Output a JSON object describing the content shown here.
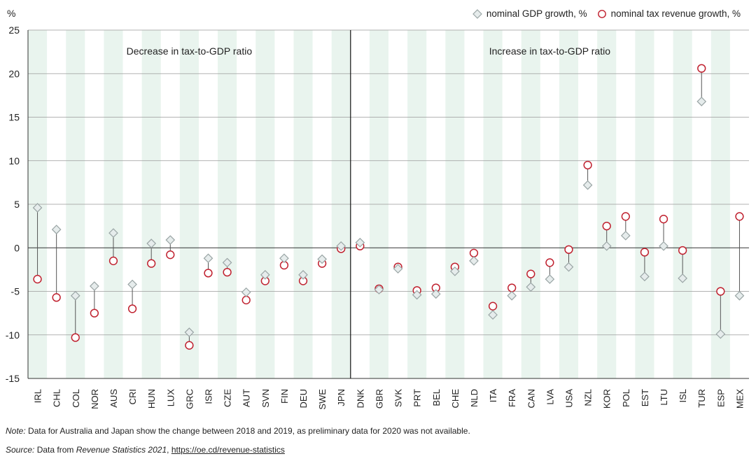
{
  "chart_data": {
    "type": "dumbbell",
    "y_axis_unit": "%",
    "ylim": [
      -15,
      25
    ],
    "yticks": [
      -15,
      -10,
      -5,
      0,
      5,
      10,
      15,
      20,
      25
    ],
    "legend": {
      "gdp_label": "nominal GDP growth, %",
      "tax_label": "nominal tax revenue growth, %",
      "placement": "top-right"
    },
    "section_labels": {
      "left": "Decrease in tax-to-GDP ratio",
      "right": "Increase in tax-to-GDP ratio"
    },
    "divider_after_index": 16,
    "categories": [
      "IRL",
      "CHL",
      "COL",
      "NOR",
      "AUS",
      "CRI",
      "HUN",
      "LUX",
      "GRC",
      "ISR",
      "CZE",
      "AUT",
      "SVN",
      "FIN",
      "DEU",
      "SWE",
      "JPN",
      "DNK",
      "GBR",
      "SVK",
      "PRT",
      "BEL",
      "CHE",
      "NLD",
      "ITA",
      "FRA",
      "CAN",
      "LVA",
      "USA",
      "NZL",
      "KOR",
      "POL",
      "EST",
      "LTU",
      "ISL",
      "TUR",
      "ESP",
      "MEX"
    ],
    "series": [
      {
        "name": "nominal GDP growth, %",
        "marker": "diamond",
        "values": [
          4.6,
          2.1,
          -5.5,
          -4.4,
          1.7,
          -4.2,
          0.5,
          0.9,
          -9.7,
          -1.2,
          -1.7,
          -5.1,
          -3.1,
          -1.2,
          -3.1,
          -1.3,
          0.2,
          0.6,
          -4.8,
          -2.4,
          -5.4,
          -5.3,
          -2.7,
          -1.5,
          -7.7,
          -5.5,
          -4.5,
          -3.6,
          -2.2,
          7.2,
          0.2,
          1.4,
          -3.3,
          0.2,
          -3.5,
          16.8,
          -9.9,
          -5.5
        ]
      },
      {
        "name": "nominal tax revenue growth, %",
        "marker": "circle",
        "values": [
          -3.6,
          -5.7,
          -10.3,
          -7.5,
          -1.5,
          -7.0,
          -1.8,
          -0.8,
          -11.2,
          -2.9,
          -2.8,
          -6.0,
          -3.8,
          -2.0,
          -3.8,
          -1.8,
          -0.1,
          0.2,
          -4.7,
          -2.2,
          -4.9,
          -4.6,
          -2.2,
          -0.6,
          -6.7,
          -4.6,
          -3.0,
          -1.7,
          -0.2,
          9.5,
          2.5,
          3.6,
          -0.5,
          3.3,
          -0.3,
          20.6,
          -5.0,
          3.6
        ]
      }
    ]
  },
  "notes": {
    "note_label": "Note:",
    "note_text": " Data for Australia and Japan show the change between 2018 and 2019, as preliminary data for 2020 was not available.",
    "source_label": "Source:",
    "source_prefix": " Data from ",
    "source_title": "Revenue Statistics 2021",
    "source_sep": ", ",
    "source_link": "https://oe.cd/revenue-statistics"
  },
  "colors": {
    "band": "#e9f4ee",
    "grid": "#9a9a9a",
    "zero": "#333333",
    "circle_stroke": "#c0212f",
    "diamond_fill": "#e6ecec",
    "diamond_stroke": "#9aa5a5",
    "stem": "#555555",
    "text": "#222222"
  }
}
